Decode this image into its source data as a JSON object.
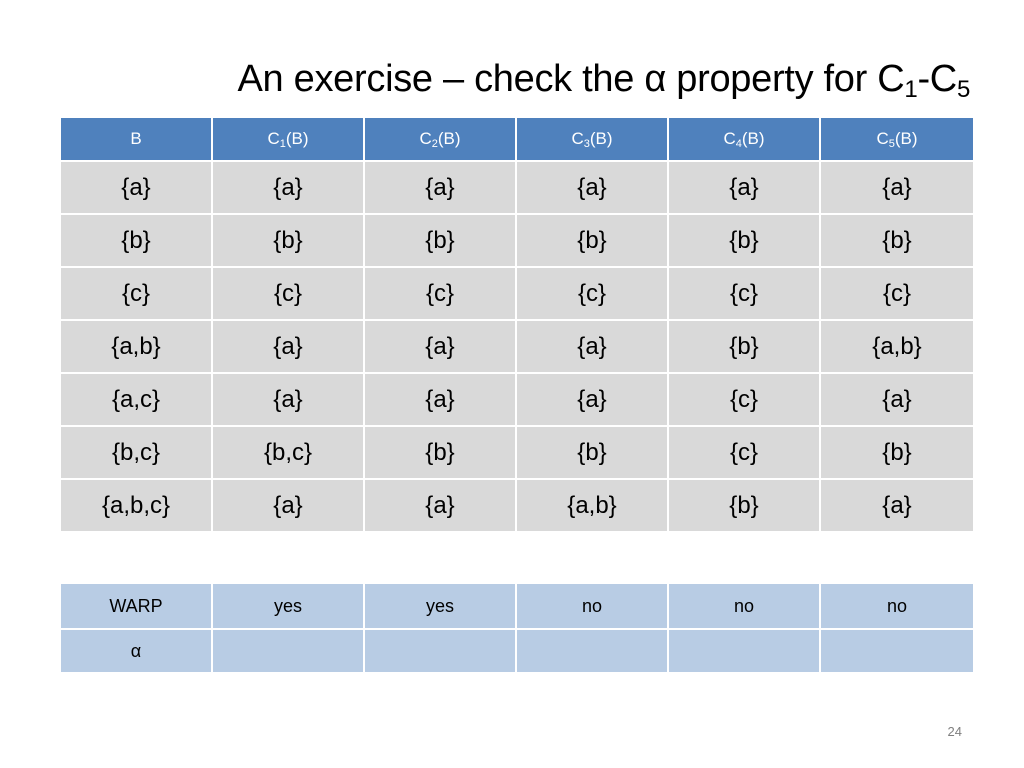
{
  "title": {
    "prefix": "An exercise – check the",
    "alpha": "α",
    "suffix": "property for C",
    "sub1": "1",
    "dash": "-C",
    "sub2": "5"
  },
  "table": {
    "header": {
      "col0": "B",
      "cols": [
        {
          "pre": "C",
          "sub": "1",
          "post": "(B)"
        },
        {
          "pre": "C",
          "sub": "2",
          "post": "(B)"
        },
        {
          "pre": "C",
          "sub": "3",
          "post": "(B)"
        },
        {
          "pre": "C",
          "sub": "4",
          "post": "(B)"
        },
        {
          "pre": "C",
          "sub": "5",
          "post": "(B)"
        }
      ]
    },
    "rows": [
      [
        "{a}",
        "{a}",
        "{a}",
        "{a}",
        "{a}",
        "{a}"
      ],
      [
        "{b}",
        "{b}",
        "{b}",
        "{b}",
        "{b}",
        "{b}"
      ],
      [
        "{c}",
        "{c}",
        "{c}",
        "{c}",
        "{c}",
        "{c}"
      ],
      [
        "{a,b}",
        "{a}",
        "{a}",
        "{a}",
        "{b}",
        "{a,b}"
      ],
      [
        "{a,c}",
        "{a}",
        "{a}",
        "{a}",
        "{c}",
        "{a}"
      ],
      [
        "{b,c}",
        "{b,c}",
        "{b}",
        "{b}",
        "{c}",
        "{b}"
      ],
      [
        "{a,b,c}",
        "{a}",
        "{a}",
        "{a,b}",
        "{b}",
        "{a}"
      ]
    ]
  },
  "summary": {
    "warp": {
      "label": "WARP",
      "values": [
        "yes",
        "yes",
        "no",
        "no",
        "no"
      ]
    },
    "alpha": {
      "label": "α",
      "values": [
        "",
        "",
        "",
        "",
        ""
      ]
    }
  },
  "page_number": "24",
  "colors": {
    "header_bg": "#4f81bd",
    "body_bg": "#d9d9d9",
    "summary_bg": "#b8cce4"
  }
}
